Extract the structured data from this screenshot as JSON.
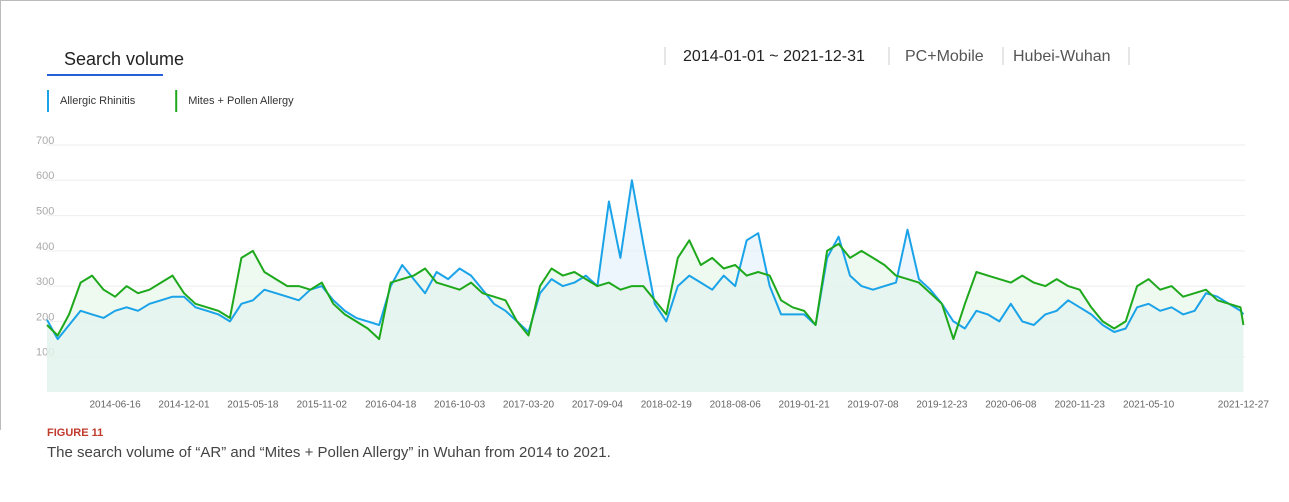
{
  "header": {
    "title": "Search volume",
    "date_range": "2014-01-01 ~ 2021-12-31",
    "device": "PC+Mobile",
    "region": "Hubei-Wuhan"
  },
  "figure": {
    "label": "FIGURE 11",
    "caption": "The search volume of “AR” and “Mites + Pollen Allergy” in Wuhan from 2014 to 2021."
  },
  "chart_data": {
    "type": "line",
    "x": [
      "2014-01-01",
      "2014-01-27",
      "2014-02-24",
      "2014-03-24",
      "2014-04-21",
      "2014-05-19",
      "2014-06-16",
      "2014-07-14",
      "2014-08-11",
      "2014-09-08",
      "2014-10-06",
      "2014-11-03",
      "2014-12-01",
      "2014-12-29",
      "2015-01-26",
      "2015-02-23",
      "2015-03-23",
      "2015-04-20",
      "2015-05-18",
      "2015-06-15",
      "2015-07-13",
      "2015-08-10",
      "2015-09-07",
      "2015-10-05",
      "2015-11-02",
      "2015-11-30",
      "2015-12-28",
      "2016-01-25",
      "2016-02-22",
      "2016-03-21",
      "2016-04-18",
      "2016-05-16",
      "2016-06-13",
      "2016-07-11",
      "2016-08-08",
      "2016-09-05",
      "2016-10-03",
      "2016-10-31",
      "2016-11-28",
      "2016-12-26",
      "2017-01-23",
      "2017-02-20",
      "2017-03-20",
      "2017-04-17",
      "2017-05-15",
      "2017-06-12",
      "2017-07-10",
      "2017-08-07",
      "2017-09-04",
      "2017-10-02",
      "2017-10-30",
      "2017-11-27",
      "2017-12-25",
      "2018-01-22",
      "2018-02-19",
      "2018-03-19",
      "2018-04-16",
      "2018-05-14",
      "2018-06-11",
      "2018-07-09",
      "2018-08-06",
      "2018-09-03",
      "2018-10-01",
      "2018-10-29",
      "2018-11-26",
      "2018-12-24",
      "2019-01-21",
      "2019-02-18",
      "2019-03-18",
      "2019-04-15",
      "2019-05-13",
      "2019-06-10",
      "2019-07-08",
      "2019-08-05",
      "2019-09-02",
      "2019-09-30",
      "2019-10-28",
      "2019-11-25",
      "2019-12-23",
      "2020-01-20",
      "2020-02-17",
      "2020-03-16",
      "2020-04-13",
      "2020-05-11",
      "2020-06-08",
      "2020-07-06",
      "2020-08-03",
      "2020-08-31",
      "2020-09-28",
      "2020-10-26",
      "2020-11-23",
      "2020-12-21",
      "2021-01-18",
      "2021-02-15",
      "2021-03-15",
      "2021-04-12",
      "2021-05-10",
      "2021-06-07",
      "2021-07-05",
      "2021-08-02",
      "2021-08-30",
      "2021-09-27",
      "2021-10-25",
      "2021-11-22",
      "2021-12-20",
      "2021-12-27"
    ],
    "series": [
      {
        "name": "Allergic Rhinitis",
        "color": "#1aa3e8",
        "fill": "#dff0fa",
        "values": [
          205,
          150,
          190,
          230,
          220,
          210,
          230,
          240,
          230,
          250,
          260,
          270,
          270,
          240,
          230,
          220,
          200,
          250,
          260,
          290,
          280,
          270,
          260,
          290,
          300,
          260,
          230,
          210,
          200,
          190,
          300,
          360,
          320,
          280,
          340,
          320,
          350,
          330,
          290,
          250,
          230,
          200,
          170,
          280,
          320,
          300,
          310,
          330,
          300,
          540,
          380,
          600,
          420,
          250,
          200,
          300,
          330,
          310,
          290,
          330,
          300,
          430,
          450,
          300,
          220,
          220,
          220,
          190,
          380,
          440,
          330,
          300,
          290,
          300,
          310,
          460,
          320,
          290,
          250,
          200,
          180,
          230,
          220,
          200,
          250,
          200,
          190,
          220,
          230,
          260,
          240,
          220,
          190,
          170,
          180,
          240,
          250,
          230,
          240,
          220,
          230,
          280,
          270,
          250,
          230,
          220
        ]
      },
      {
        "name": "Mites + Pollen Allergy",
        "color": "#1ea81c",
        "fill": "#e3f5e6",
        "values": [
          190,
          160,
          220,
          310,
          330,
          290,
          270,
          300,
          280,
          290,
          310,
          330,
          280,
          250,
          240,
          230,
          210,
          380,
          400,
          340,
          320,
          300,
          300,
          290,
          310,
          250,
          220,
          200,
          180,
          150,
          310,
          320,
          330,
          350,
          310,
          300,
          290,
          310,
          280,
          270,
          260,
          200,
          160,
          300,
          350,
          330,
          340,
          320,
          300,
          310,
          290,
          300,
          300,
          260,
          220,
          380,
          430,
          360,
          380,
          350,
          360,
          330,
          340,
          330,
          260,
          240,
          230,
          190,
          400,
          420,
          380,
          400,
          380,
          360,
          330,
          320,
          310,
          280,
          250,
          150,
          250,
          340,
          330,
          320,
          310,
          330,
          310,
          300,
          320,
          300,
          290,
          240,
          200,
          180,
          200,
          300,
          320,
          290,
          300,
          270,
          280,
          290,
          260,
          250,
          240,
          190
        ]
      }
    ],
    "xlim": [
      "2014-01-01",
      "2021-12-31"
    ],
    "xticks": [
      "2014-06-16",
      "2014-12-01",
      "2015-05-18",
      "2015-11-02",
      "2016-04-18",
      "2016-10-03",
      "2017-03-20",
      "2017-09-04",
      "2018-02-19",
      "2018-08-06",
      "2019-01-21",
      "2019-07-08",
      "2019-12-23",
      "2020-06-08",
      "2020-11-23",
      "2021-05-10",
      "2021-12-27"
    ],
    "ylim": [
      0,
      700
    ],
    "yticks": [
      100,
      200,
      300,
      400,
      500,
      600,
      700
    ],
    "grid": true
  }
}
